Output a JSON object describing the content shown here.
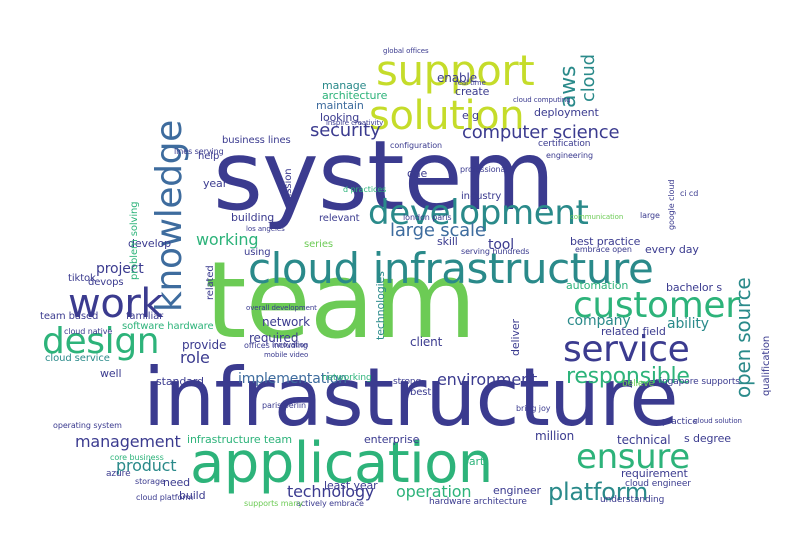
{
  "palette": {
    "navy": "#3b3b8f",
    "blue": "#3e6c9e",
    "teal": "#2a8a8a",
    "green": "#2db37a",
    "lime": "#6ccb55",
    "yellow": "#c5dc2a",
    "purple": "#47287a"
  },
  "words": {
    "system": "system",
    "team": "team",
    "infrastructure": "infrastructure",
    "application": "application",
    "cloud_infrastructure": "cloud infrastructure",
    "support": "support",
    "solution": "solution",
    "development": "development",
    "knowledge": "knowledge",
    "work": "work",
    "design": "design",
    "customer": "customer",
    "service": "service",
    "ensure": "ensure",
    "platform": "platform",
    "responsible": "responsible",
    "open_source": "open source",
    "computer_science": "computer science",
    "security": "security",
    "large_scale": "large scale",
    "aws": "aws",
    "cloud": "cloud",
    "working": "working",
    "project": "project",
    "company": "company",
    "ability": "ability",
    "management": "management",
    "product": "product",
    "technology": "technology",
    "operation": "operation",
    "environment": "environment",
    "implementation": "implementation",
    "role": "role",
    "provide": "provide",
    "deployment": "deployment",
    "enable": "enable",
    "create": "create",
    "manage": "manage",
    "architecture": "architecture",
    "maintain": "maintain",
    "looking": "looking",
    "tool": "tool",
    "skill": "skill",
    "best_practice": "best practice",
    "every_day": "every day",
    "bachelor_s": "bachelor s",
    "automation": "automation",
    "related_field": "related field",
    "degree": "s degree",
    "requirement": "requirement",
    "technical": "technical",
    "million": "million",
    "engineer": "engineer",
    "network": "network",
    "client": "client",
    "deliver": "deliver",
    "required": "required",
    "least_year": "least year",
    "infrastructure_team": "infrastructure team",
    "enterprise": "enterprise",
    "part": "part",
    "build": "build",
    "need": "need",
    "devops": "devops",
    "tiktok": "tiktok",
    "team_based": "team based",
    "familiar": "familiar",
    "software_hardware": "software hardware",
    "cloud_service": "cloud service",
    "well": "well",
    "standard": "standard",
    "building": "building",
    "develop": "develop",
    "year": "year",
    "help": "help",
    "business_lines": "business lines",
    "mission": "mission",
    "relevant": "relevant",
    "series": "series",
    "using": "using",
    "related": "related",
    "technologies": "technologies",
    "problem_solving": "problem solving",
    "one": "one",
    "industry": "industry",
    "qualification": "qualification",
    "hardware_architecture": "hardware architecture",
    "certification": "certification",
    "e_g": "e g",
    "best": "best",
    "strong": "strong",
    "networking": "networking",
    "understanding": "understanding",
    "cloud_engineer": "cloud engineer",
    "singapore_supports": "singapore supports",
    "believe": "believe",
    "practice": "practice",
    "configuration": "configuration",
    "professional": "professional",
    "cloud_platform": "cloud platform",
    "core_business": "core business",
    "storage": "storage",
    "lines_serving": "lines serving",
    "engineering": "engineering",
    "operating_system": "operating system",
    "azure": "azure",
    "cloud_native": "cloud native",
    "offices_including": "offices including",
    "actively_embrace": "actively embrace",
    "supports_many": "supports many",
    "london_paris": "london paris",
    "serving_hundreds": "serving hundreds",
    "embrace_open": "embrace open",
    "bring_joy": "bring joy",
    "paris_berlin": "paris berlin",
    "inspire_creativity": "inspire creativity",
    "global_offices": "global offices",
    "cloud_computing": "cloud computing",
    "real_time": "real time",
    "los_angeles": "los angeles",
    "innovation": "innovation",
    "mobile_video": "mobile video",
    "cloud_solution": "cloud solution",
    "communication": "communication",
    "d_practices": "d practices",
    "google_cloud": "google cloud",
    "ci_cd": "ci cd",
    "large": "large",
    "overall_development": "overall development"
  }
}
